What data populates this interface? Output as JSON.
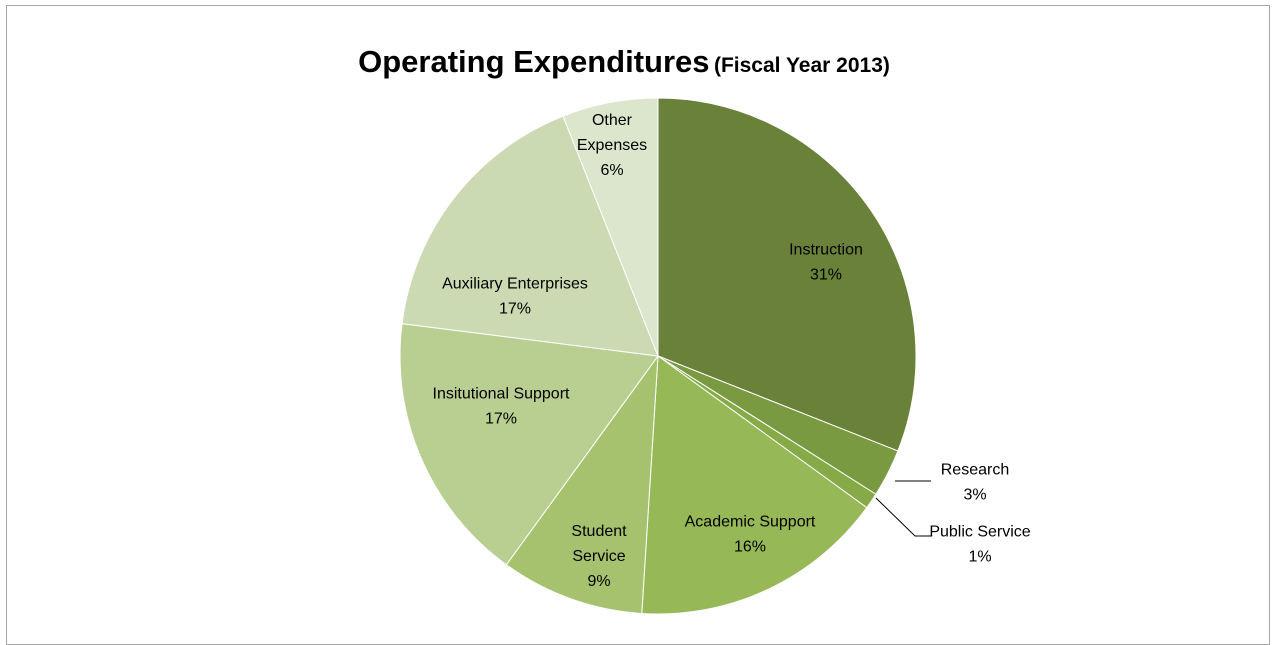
{
  "chart_data": {
    "type": "pie",
    "title": "Operating Expenditures",
    "subtitle": "(Fiscal Year 2013)",
    "slices": [
      {
        "label": "Instruction",
        "value": 31,
        "value_label": "31%",
        "color": "#6a8139"
      },
      {
        "label": "Research",
        "value": 3,
        "value_label": "3%",
        "color": "#7a9a41"
      },
      {
        "label": "Public Service",
        "value": 1,
        "value_label": "1%",
        "color": "#86aa48"
      },
      {
        "label": "Academic Support",
        "value": 16,
        "value_label": "16%",
        "color": "#97b857"
      },
      {
        "label": "Student Service",
        "value": 9,
        "value_label": "9%",
        "color": "#a6c26f"
      },
      {
        "label": "Insitutional Support",
        "value": 17,
        "value_label": "17%",
        "color": "#b9cf92"
      },
      {
        "label": "Auxiliary Enterprises",
        "value": 17,
        "value_label": "17%",
        "color": "#cbdab2"
      },
      {
        "label": "Other Expenses",
        "value": 6,
        "value_label": "6%",
        "color": "#dbe6cc"
      }
    ],
    "legend": "none",
    "data_labels": "category-and-percent"
  }
}
